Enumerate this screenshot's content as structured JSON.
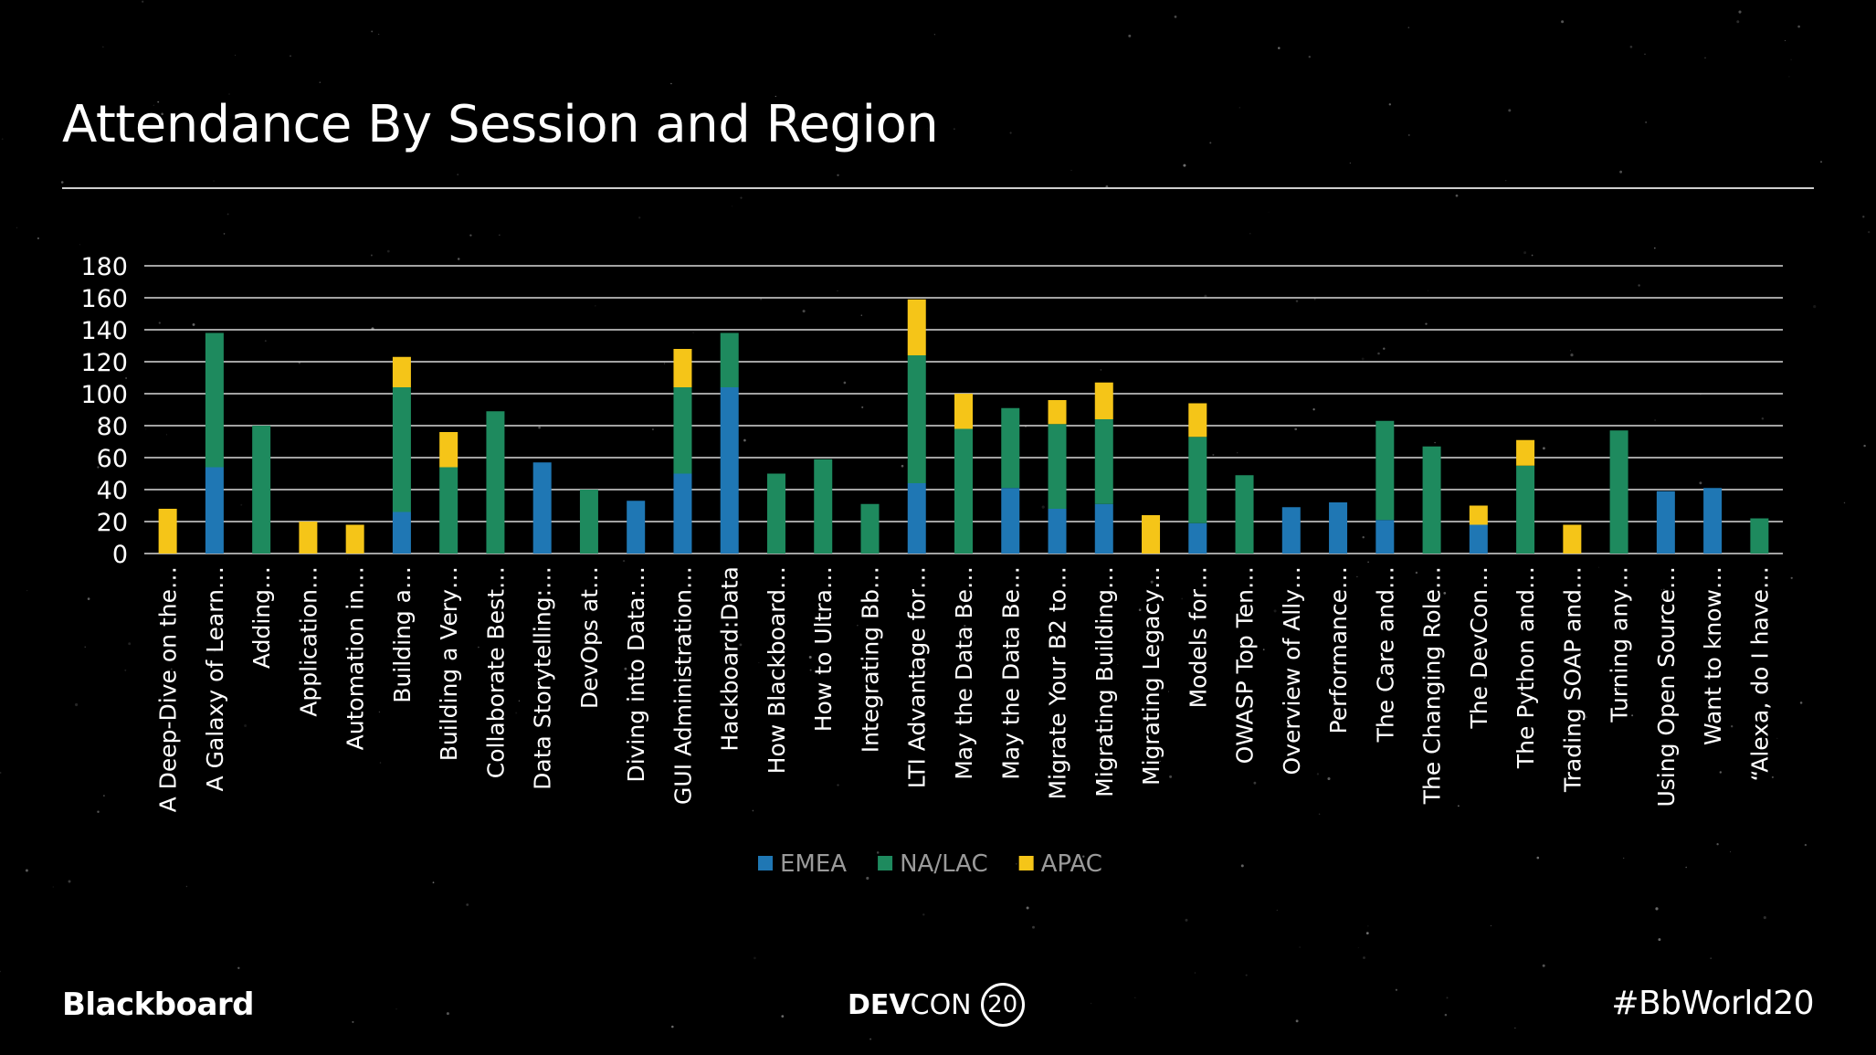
{
  "slide": {
    "title": "Attendance By Session and Region",
    "footer_left": "Blackboard",
    "footer_center_bold": "DEV",
    "footer_center_light": "CON",
    "footer_center_badge": "20",
    "footer_right": "#BbWorld20"
  },
  "chart_data": {
    "type": "bar",
    "stacked": true,
    "title": "",
    "xlabel": "",
    "ylabel": "",
    "ylim": [
      0,
      180
    ],
    "yticks": [
      0,
      20,
      40,
      60,
      80,
      100,
      120,
      140,
      160,
      180
    ],
    "grid": true,
    "legend_position": "bottom",
    "colors": {
      "EMEA": "#1f77b4",
      "NA/LAC": "#1e8a5e",
      "APAC": "#f5c518"
    },
    "categories": [
      "A Deep-Dive on the…",
      "A Galaxy of Learn…",
      "Adding…",
      "Application…",
      "Automation in…",
      "Building a…",
      "Building a Very…",
      "Collaborate Best…",
      "Data Storytelling:…",
      "DevOps at…",
      "Diving into Data:…",
      "GUI Administration…",
      "Hackboard:Data",
      "How Blackboard…",
      "How to Ultra…",
      "Integrating Bb…",
      "LTI Advantage for…",
      "May the Data Be…",
      "May the Data Be…",
      "Migrate Your B2 to…",
      "Migrating Building…",
      "Migrating Legacy…",
      "Models for…",
      "OWASP Top Ten…",
      "Overview of Ally…",
      "Performance…",
      "The Care and…",
      "The Changing Role…",
      "The DevCon…",
      "The Python and…",
      "Trading SOAP and…",
      "Turning any…",
      "Using Open Source…",
      "Want to know…",
      "“Alexa, do I have…"
    ],
    "series": [
      {
        "name": "EMEA",
        "values": [
          0,
          54,
          0,
          0,
          0,
          26,
          0,
          0,
          57,
          0,
          33,
          50,
          104,
          0,
          0,
          0,
          44,
          0,
          41,
          28,
          31,
          0,
          19,
          0,
          29,
          32,
          21,
          0,
          18,
          0,
          0,
          0,
          39,
          41,
          0
        ]
      },
      {
        "name": "NA/LAC",
        "values": [
          0,
          84,
          80,
          0,
          0,
          78,
          54,
          89,
          0,
          40,
          0,
          54,
          34,
          50,
          59,
          31,
          80,
          78,
          50,
          53,
          53,
          0,
          54,
          49,
          0,
          0,
          62,
          67,
          0,
          55,
          0,
          77,
          0,
          0,
          22
        ]
      },
      {
        "name": "APAC",
        "values": [
          28,
          0,
          0,
          20,
          18,
          19,
          22,
          0,
          0,
          0,
          0,
          24,
          0,
          0,
          0,
          0,
          35,
          22,
          0,
          15,
          23,
          24,
          21,
          0,
          0,
          0,
          0,
          0,
          12,
          16,
          18,
          0,
          0,
          0,
          0
        ]
      }
    ]
  }
}
